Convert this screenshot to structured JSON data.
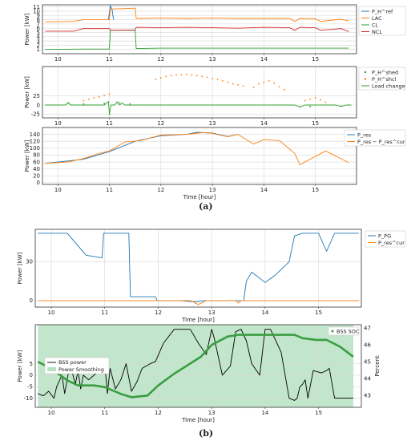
{
  "figure": {
    "caption_a": "(a)",
    "caption_b": "(b)"
  },
  "colors": {
    "blue": "#1f77b4",
    "orange": "#ff7f0e",
    "green": "#2ca02c",
    "red": "#d62728",
    "black": "#000000",
    "smoothing_fill": "#b7e2c2",
    "soc_green": "#3a9e42"
  },
  "chart_data": [
    {
      "id": "a1",
      "type": "line",
      "ylabel": "Power [kW]",
      "xlim": [
        9.7,
        15.8
      ],
      "ylim": [
        0,
        11.5
      ],
      "xticks": [
        10,
        11,
        12,
        13,
        14,
        15
      ],
      "yticks": [
        1,
        2,
        3,
        4,
        5,
        6,
        7,
        8,
        9,
        10,
        11
      ],
      "grid": true,
      "legend": "right",
      "series": [
        {
          "name": "P_H^ref",
          "color": "blue",
          "x": [
            10.98,
            11.02,
            11.05,
            11.08
          ],
          "y": [
            8.0,
            11.3,
            10.5,
            8.0
          ]
        },
        {
          "name": "LAC",
          "color": "orange",
          "x": [
            9.75,
            10.3,
            10.5,
            11.0,
            11.02,
            11.5,
            11.52,
            12.0,
            12.5,
            13.0,
            13.5,
            14.0,
            14.5,
            14.6,
            14.7,
            15.0,
            15.1,
            15.5,
            15.65
          ],
          "y": [
            7.5,
            7.6,
            8.0,
            8.0,
            10.5,
            10.7,
            8.3,
            8.4,
            8.3,
            8.4,
            8.3,
            8.3,
            8.3,
            7.6,
            8.3,
            8.2,
            7.6,
            8.1,
            7.7
          ]
        },
        {
          "name": "CL",
          "color": "green",
          "x": [
            9.75,
            10.5,
            11.0,
            11.02,
            11.5,
            11.52,
            12.0,
            13.0,
            14.0,
            15.0,
            15.65
          ],
          "y": [
            1.0,
            1.1,
            1.1,
            5.5,
            5.5,
            1.2,
            1.3,
            1.3,
            1.3,
            1.3,
            1.3
          ]
        },
        {
          "name": "NCL",
          "color": "red",
          "x": [
            9.75,
            10.3,
            10.5,
            11.0,
            11.02,
            11.5,
            11.52,
            12.0,
            12.5,
            13.0,
            13.5,
            14.0,
            14.5,
            14.6,
            14.7,
            15.0,
            15.1,
            15.5,
            15.65
          ],
          "y": [
            5.3,
            5.3,
            5.9,
            5.9,
            5.5,
            5.6,
            6.2,
            6.1,
            6.2,
            6.1,
            6.0,
            6.2,
            6.1,
            5.5,
            6.2,
            6.1,
            5.5,
            5.9,
            5.2
          ]
        }
      ]
    },
    {
      "id": "a2",
      "type": "scatter",
      "ylabel": "Power [kW]",
      "xlim": [
        9.7,
        15.8
      ],
      "ylim": [
        -35,
        105
      ],
      "xticks": [
        10,
        11,
        12,
        13,
        14,
        15
      ],
      "yticks": [
        -25,
        0,
        25
      ],
      "grid": true,
      "legend": "right",
      "series": [
        {
          "name": "P_H^shed",
          "color": "green",
          "kind": "points",
          "x": [
            10.2,
            10.5,
            10.9,
            11.0,
            11.15,
            11.2,
            11.4,
            14.7,
            14.9,
            15.5
          ],
          "y": [
            5,
            3,
            4,
            -25,
            8,
            6,
            3,
            -5,
            -4,
            -3
          ]
        },
        {
          "name": "P_H^shcl",
          "color": "orange",
          "kind": "points",
          "x": [
            10.5,
            10.6,
            10.7,
            10.8,
            10.9,
            11.0,
            11.9,
            12.0,
            12.1,
            12.2,
            12.3,
            12.4,
            12.5,
            12.6,
            12.7,
            12.8,
            12.9,
            13.0,
            13.1,
            13.2,
            13.3,
            13.4,
            13.5,
            13.6,
            13.8,
            13.9,
            14.0,
            14.1,
            14.2,
            14.3,
            14.4,
            14.8,
            14.9,
            15.0,
            15.1,
            15.2
          ],
          "y": [
            12,
            16,
            20,
            22,
            26,
            30,
            70,
            74,
            78,
            80,
            82,
            83,
            84,
            82,
            80,
            78,
            76,
            72,
            70,
            66,
            62,
            58,
            55,
            52,
            48,
            58,
            62,
            66,
            60,
            50,
            42,
            12,
            16,
            20,
            14,
            8
          ]
        },
        {
          "name": "Load change",
          "color": "green",
          "kind": "line",
          "x": [
            9.75,
            10.15,
            10.2,
            10.25,
            10.9,
            10.98,
            11.0,
            11.03,
            11.1,
            11.15,
            11.2,
            11.25,
            11.3,
            14.6,
            14.7,
            14.8,
            15.4,
            15.5,
            15.6,
            15.7
          ],
          "y": [
            0,
            0,
            7,
            0,
            0,
            10,
            -25,
            0,
            0,
            8,
            0,
            6,
            0,
            0,
            -5,
            0,
            0,
            -4,
            0,
            0
          ]
        }
      ]
    },
    {
      "id": "a3",
      "type": "line",
      "xlabel": "Time [hour]",
      "ylabel": "Power [kW]",
      "xlim": [
        9.7,
        15.8
      ],
      "ylim": [
        -5,
        160
      ],
      "xticks": [
        10,
        11,
        12,
        13,
        14,
        15
      ],
      "yticks": [
        0,
        20,
        40,
        60,
        80,
        100,
        120,
        140
      ],
      "grid": true,
      "legend": "right",
      "series": [
        {
          "name": "P_res",
          "color": "blue",
          "x": [
            9.75,
            10.5,
            11.0,
            11.5,
            12.0,
            12.5,
            12.7,
            13.0,
            13.3,
            13.5
          ],
          "y": [
            56,
            68,
            90,
            120,
            136,
            140,
            146,
            144,
            134,
            140
          ]
        },
        {
          "name": "P_res − P_res^cur",
          "color": "orange",
          "x": [
            9.75,
            10.2,
            10.5,
            10.8,
            11.0,
            11.3,
            11.6,
            12.0,
            12.5,
            12.8,
            13.0,
            13.3,
            13.5,
            13.8,
            14.0,
            14.3,
            14.6,
            14.7,
            15.2,
            15.65
          ],
          "y": [
            56,
            60,
            70,
            85,
            92,
            118,
            122,
            138,
            140,
            145,
            143,
            133,
            140,
            112,
            125,
            122,
            85,
            52,
            92,
            58
          ]
        }
      ]
    },
    {
      "id": "b1",
      "type": "line",
      "xlabel": "Time [hour]",
      "ylabel": "Power [kW]",
      "xlim": [
        9.7,
        15.8
      ],
      "ylim": [
        -5,
        55
      ],
      "xticks": [
        10,
        11,
        12,
        13,
        14,
        15
      ],
      "yticks": [
        0,
        30
      ],
      "grid": true,
      "legend": "right",
      "series": [
        {
          "name": "P_PG",
          "color": "blue",
          "x": [
            9.75,
            10.3,
            10.65,
            10.95,
            10.98,
            11.0,
            11.45,
            11.48,
            11.55,
            11.95,
            11.98,
            12.3,
            12.4,
            12.7,
            12.85,
            13.1,
            13.6,
            13.65,
            13.75,
            14.0,
            14.2,
            14.45,
            14.55,
            14.7,
            15.0,
            15.15,
            15.3,
            15.75
          ],
          "y": [
            52,
            52,
            35,
            33,
            52,
            52,
            52,
            3,
            3,
            3,
            0,
            0,
            0,
            -1,
            0,
            0,
            0,
            15,
            22,
            14,
            20,
            30,
            50,
            52,
            52,
            38,
            52,
            52
          ]
        },
        {
          "name": "P_res^cur",
          "color": "orange",
          "x": [
            9.75,
            12.6,
            12.75,
            12.9,
            13.45,
            13.5,
            13.55,
            15.75
          ],
          "y": [
            0,
            0,
            -3,
            0,
            0,
            -2,
            0,
            0
          ]
        }
      ]
    },
    {
      "id": "b2",
      "type": "line",
      "xlabel": "Time [hour]",
      "ylabel": "Power [kW]",
      "ylabel_right": "Percent",
      "xlim": [
        9.7,
        15.8
      ],
      "ylim": [
        -14,
        22
      ],
      "ylim_right": [
        42.3,
        47.2
      ],
      "xticks": [
        10,
        11,
        12,
        13,
        14,
        15
      ],
      "yticks": [
        -10,
        -5,
        0,
        5
      ],
      "yticks_right": [
        43,
        44,
        45,
        46,
        47
      ],
      "grid": true,
      "legend": "top-right",
      "smoothing_band": [
        9.75,
        15.65
      ],
      "series": [
        {
          "name": "BSS power",
          "color": "black",
          "axis": "left",
          "x": [
            9.75,
            9.85,
            9.95,
            10.05,
            10.1,
            10.2,
            10.25,
            10.35,
            10.45,
            10.5,
            10.55,
            10.6,
            10.7,
            10.8,
            10.9,
            10.95,
            11.0,
            11.05,
            11.1,
            11.2,
            11.3,
            11.4,
            11.5,
            11.6,
            11.7,
            11.85,
            11.95,
            12.1,
            12.3,
            12.45,
            12.6,
            12.75,
            12.9,
            13.0,
            13.05,
            13.2,
            13.35,
            13.45,
            13.55,
            13.65,
            13.75,
            13.9,
            14.0,
            14.1,
            14.3,
            14.45,
            14.55,
            14.6,
            14.65,
            14.7,
            14.75,
            14.8,
            14.9,
            15.05,
            15.15,
            15.2,
            15.3,
            15.45,
            15.6,
            15.65
          ],
          "y": [
            -8,
            -9,
            -7,
            -10,
            -5,
            0,
            -8,
            5,
            -4,
            2,
            -6,
            0,
            -2,
            0,
            2,
            2,
            5,
            -8,
            3,
            -6,
            -2,
            5,
            -7,
            -3,
            3,
            5,
            6,
            14,
            20,
            20,
            20,
            14,
            9,
            20,
            16,
            0,
            4,
            19,
            20,
            15,
            5,
            0,
            20,
            20,
            10,
            -10,
            -11,
            -10,
            -5,
            -4,
            -2,
            -10,
            2,
            1,
            2,
            3,
            -10,
            -10,
            -10,
            -10
          ]
        },
        {
          "name": "BSS SOC",
          "color": "soc_green",
          "axis": "right",
          "x": [
            9.75,
            10.0,
            10.3,
            10.5,
            10.8,
            11.0,
            11.3,
            11.5,
            11.8,
            12.0,
            12.3,
            12.5,
            12.8,
            13.0,
            13.3,
            13.5,
            13.7,
            14.0,
            14.3,
            14.55,
            14.7,
            14.95,
            15.15,
            15.4,
            15.65
          ],
          "y": [
            45.0,
            44.6,
            43.9,
            43.6,
            43.6,
            43.5,
            43.1,
            42.9,
            43.0,
            43.6,
            44.3,
            44.7,
            45.3,
            46.0,
            46.5,
            46.6,
            46.6,
            46.6,
            46.6,
            46.6,
            46.4,
            46.3,
            46.3,
            45.9,
            45.3
          ]
        }
      ],
      "legend_entries": [
        "BSS power",
        "Power Smoothing",
        "BSS SOC"
      ]
    }
  ],
  "labels": {
    "a1_leg": [
      "P_H^ref",
      "LAC",
      "CL",
      "NCL"
    ],
    "a2_leg": [
      "P_H^shed",
      "P_H^shcl",
      "Load change"
    ],
    "a3_leg": [
      "P_res",
      "P_res − P_res^cur"
    ],
    "b1_leg": [
      "P_PG",
      "P_res^cur"
    ],
    "b2_leg_left": [
      "BSS power",
      "Power Smoothing"
    ],
    "b2_leg_right": "BSS SOC",
    "time_label": "Time [hour]",
    "power_label": "Power [kW]",
    "percent_label": "Percent"
  }
}
